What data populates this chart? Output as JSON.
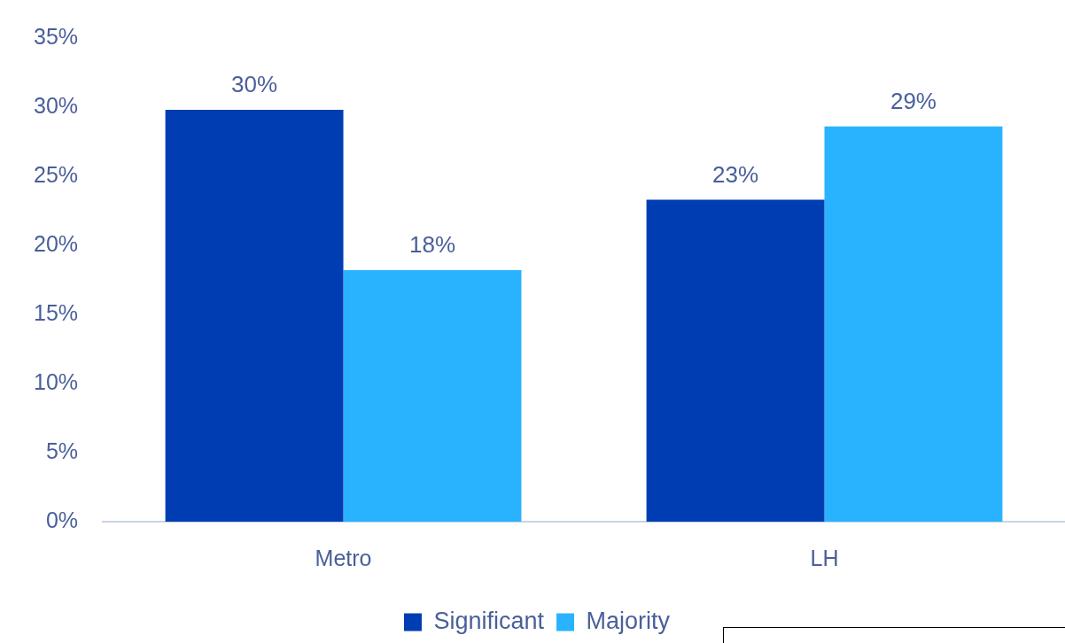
{
  "chart_data": {
    "type": "bar",
    "categories": [
      "Metro",
      "LH"
    ],
    "series": [
      {
        "name": "Significant",
        "color": "#003db3",
        "values": [
          29.8,
          23.3
        ],
        "value_labels": [
          "30%",
          "23%"
        ]
      },
      {
        "name": "Majority",
        "color": "#29b3ff",
        "values": [
          18.2,
          28.6
        ],
        "value_labels": [
          "18%",
          "29%"
        ]
      }
    ],
    "ylim": [
      0,
      35
    ],
    "yticks": [
      {
        "value": 0,
        "label": "0%"
      },
      {
        "value": 5,
        "label": "5%"
      },
      {
        "value": 10,
        "label": "10%"
      },
      {
        "value": 15,
        "label": "15%"
      },
      {
        "value": 20,
        "label": "20%"
      },
      {
        "value": 25,
        "label": "25%"
      },
      {
        "value": 30,
        "label": "30%"
      },
      {
        "value": 35,
        "label": "35%"
      }
    ],
    "grid": false,
    "legend": "bottom"
  }
}
